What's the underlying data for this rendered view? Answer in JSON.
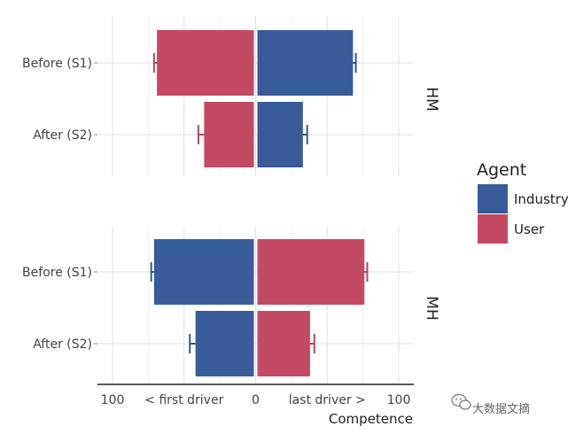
{
  "chart_data": {
    "type": "bar",
    "orientation": "horizontal-diverging",
    "xlabel": "Competence",
    "x_tick_labels": [
      "100",
      "< first driver",
      "0",
      "last driver >",
      "100"
    ],
    "legend": {
      "title": "Agent",
      "placement": "right",
      "entries": [
        {
          "name": "Industry",
          "color": "#375c99"
        },
        {
          "name": "User",
          "color": "#c24a64"
        }
      ]
    },
    "categories": [
      "Before (S1)",
      "After (S2)"
    ],
    "panels": [
      {
        "label": "HM",
        "bars": [
          {
            "category": "Before (S1)",
            "agent": "User",
            "side": "first driver",
            "value": 69,
            "error": 71
          },
          {
            "category": "Before (S1)",
            "agent": "Industry",
            "side": "last driver",
            "value": 68,
            "error": 70
          },
          {
            "category": "After (S2)",
            "agent": "User",
            "side": "first driver",
            "value": 36,
            "error": 40
          },
          {
            "category": "After (S2)",
            "agent": "Industry",
            "side": "last driver",
            "value": 33,
            "error": 36
          }
        ]
      },
      {
        "label": "MH",
        "bars": [
          {
            "category": "Before (S1)",
            "agent": "Industry",
            "side": "first driver",
            "value": 71,
            "error": 73
          },
          {
            "category": "Before (S1)",
            "agent": "User",
            "side": "last driver",
            "value": 76,
            "error": 78
          },
          {
            "category": "After (S2)",
            "agent": "Industry",
            "side": "first driver",
            "value": 42,
            "error": 46
          },
          {
            "category": "After (S2)",
            "agent": "User",
            "side": "last driver",
            "value": 38,
            "error": 41
          }
        ]
      }
    ],
    "xlim": [
      -100,
      100
    ],
    "grid": true
  },
  "watermark": "大数据文摘"
}
